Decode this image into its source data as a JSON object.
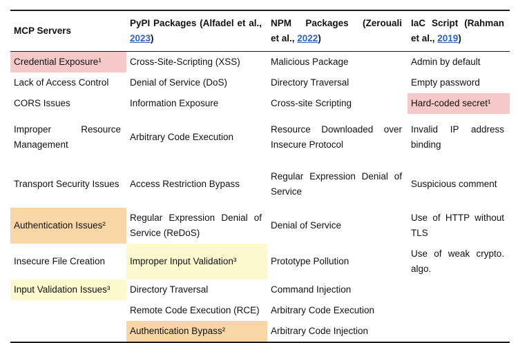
{
  "colors": {
    "pink": "#f6c8c8",
    "orange": "#f8d6a6",
    "yellow": "#fbf9cd",
    "link": "#2d5fc7",
    "border": "#1a1a1a"
  },
  "table": {
    "headers": [
      {
        "title": "MCP Servers"
      },
      {
        "prefix": "PyPI Packages (Alfadel et al., ",
        "year": "2023",
        "suffix": ")"
      },
      {
        "line1": "NPM Packages (Zerouali",
        "line2_pre": "et al., ",
        "year": "2022",
        "suffix": ")"
      },
      {
        "line1": "IaC Script (Rahman",
        "line2_pre": "et al., ",
        "year": "2019",
        "suffix": ")"
      }
    ],
    "rows": [
      {
        "cells": [
          {
            "text": "Credential Exposure¹",
            "highlight": "pink"
          },
          {
            "text": "Cross-Site-Scripting (XSS)"
          },
          {
            "text": "Malicious Package"
          },
          {
            "text": "Admin by default"
          }
        ]
      },
      {
        "cells": [
          {
            "text": "Lack of Access Control"
          },
          {
            "text": "Denial of Service (DoS)"
          },
          {
            "text": "Directory Traversal"
          },
          {
            "text": "Empty password"
          }
        ]
      },
      {
        "cells": [
          {
            "text": "CORS Issues"
          },
          {
            "text": "Information Exposure"
          },
          {
            "text": "Cross-site Scripting"
          },
          {
            "text": "Hard-coded secret¹",
            "highlight": "pink"
          }
        ]
      },
      {
        "cells": [
          {
            "text": "Improper Resource Management"
          },
          {
            "text": "Arbitrary Code Execution"
          },
          {
            "text": "Resource Downloaded over Insecure Protocol"
          },
          {
            "text": "Invalid IP address binding"
          }
        ]
      },
      {
        "cells": [
          {
            "text": "Transport Security Issues"
          },
          {
            "text": "Access Restriction Bypass"
          },
          {
            "text": "Regular Expression Denial of Service"
          },
          {
            "text": "Suspicious comment"
          }
        ]
      },
      {
        "cells": [
          {
            "text": "Authentication Issues²",
            "highlight": "orange"
          },
          {
            "text": "Regular Expression Denial of Service (ReDoS)"
          },
          {
            "text": "Denial of Service"
          },
          {
            "text": "Use of HTTP without TLS"
          }
        ]
      },
      {
        "cells": [
          {
            "text": "Insecure File Creation"
          },
          {
            "text": "Improper Input Validation³",
            "highlight": "yellow"
          },
          {
            "text": "Prototype Pollution"
          },
          {
            "text": "Use of weak crypto. algo."
          }
        ]
      },
      {
        "cells": [
          {
            "text": "Input Validation Issues³",
            "highlight": "yellow"
          },
          {
            "text": "Directory Traversal"
          },
          {
            "text": "Command Injection"
          },
          {
            "text": ""
          }
        ]
      },
      {
        "cells": [
          {
            "text": ""
          },
          {
            "text": "Remote Code Execution (RCE)"
          },
          {
            "text": "Arbitrary Code Execution"
          },
          {
            "text": ""
          }
        ]
      },
      {
        "cells": [
          {
            "text": ""
          },
          {
            "text": "Authentication Bypass²",
            "highlight": "orange"
          },
          {
            "text": "Arbitrary Code Injection"
          },
          {
            "text": ""
          }
        ]
      }
    ]
  }
}
